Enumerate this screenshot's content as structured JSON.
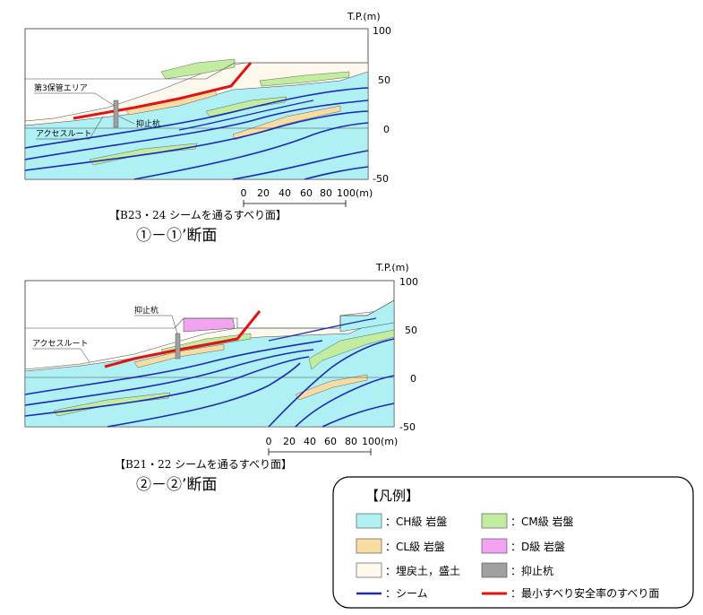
{
  "section1": {
    "axis_unit": "T.P.(m)",
    "y_ticks": [
      "100",
      "50",
      "0",
      "-50"
    ],
    "labels": {
      "storage": "第3保管エリア",
      "pile": "抑止杭",
      "route": "アクセスルート"
    },
    "scale_ticks": [
      "0",
      "20",
      "40",
      "60",
      "80",
      "100(m)"
    ],
    "caption": "【B23・24 シームを通るすべり面】",
    "title": "①－①’断面"
  },
  "section2": {
    "axis_unit": "T.P.(m)",
    "y_ticks": [
      "100",
      "50",
      "0",
      "-50"
    ],
    "labels": {
      "pile": "抑止杭",
      "route": "アクセスルート"
    },
    "scale_ticks": [
      "0",
      "20",
      "40",
      "60",
      "80",
      "100(m)"
    ],
    "caption": "【B21・22 シームを通るすべり面】",
    "title": "②－②’断面"
  },
  "legend": {
    "title": "【凡例】",
    "items": [
      {
        "label": "：CH級 岩盤",
        "color": "#aef0f4"
      },
      {
        "label": "：CM級 岩盤",
        "color": "#c2eca0"
      },
      {
        "label": "：CL級 岩盤",
        "color": "#f8dca4"
      },
      {
        "label": "：D級 岩盤",
        "color": "#f2a4f0"
      },
      {
        "label": "：埋戻土，盛土",
        "color": "#fff8ec"
      },
      {
        "label": "：抑止杭",
        "color": "#a0a0a0"
      },
      {
        "label": "：シーム",
        "color": "#1e2ab4"
      },
      {
        "label": "：最小すべり安全率のすべり面",
        "color": "#e01414"
      }
    ]
  },
  "colors": {
    "ch": "#aef0f4",
    "cm": "#c2eca0",
    "cl": "#f8dca4",
    "d": "#f2a4f0",
    "fill": "#fff8ec",
    "pile": "#a0a0a0",
    "seam": "#1e2ab4",
    "slip": "#e01414"
  }
}
